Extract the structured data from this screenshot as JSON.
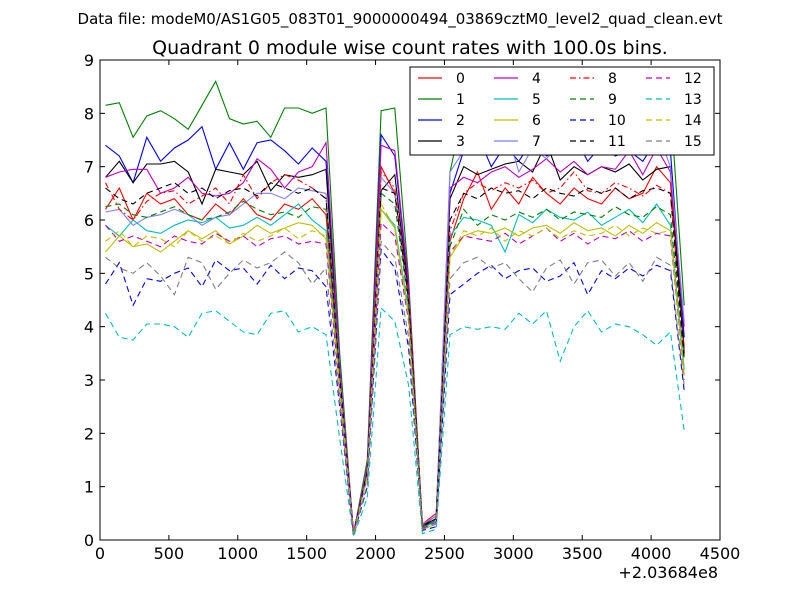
{
  "suptitle": "Data file: modeM0/AS1G05_083T01_9000000494_03869cztM0_level2_quad_clean.evt",
  "chart_data": {
    "type": "line",
    "title": "Quadrant 0 module wise count rates with 100.0s bins.",
    "xlabel": "",
    "ylabel": "",
    "xlim": [
      0,
      4500
    ],
    "ylim": [
      0,
      9
    ],
    "x_offset_label": "+2.03684e8",
    "xticks": [
      0,
      500,
      1000,
      1500,
      2000,
      2500,
      3000,
      3500,
      4000,
      4500
    ],
    "yticks": [
      0,
      1,
      2,
      3,
      4,
      5,
      6,
      7,
      8,
      9
    ],
    "grid": false,
    "legend_position": "top-right",
    "legend_columns": 4,
    "x": [
      40,
      140,
      240,
      340,
      440,
      540,
      640,
      740,
      840,
      940,
      1040,
      1140,
      1240,
      1340,
      1440,
      1540,
      1640,
      1740,
      1840,
      1940,
      2040,
      2140,
      2240,
      2340,
      2440,
      2540,
      2640,
      2740,
      2840,
      2940,
      3040,
      3140,
      3240,
      3340,
      3440,
      3540,
      3640,
      3740,
      3840,
      3940,
      4040,
      4140,
      4240
    ],
    "series": [
      {
        "name": "0",
        "color": "#ff0000",
        "dash": "solid",
        "values": [
          6.2,
          6.6,
          6.0,
          6.5,
          6.3,
          6.4,
          6.1,
          6.0,
          6.3,
          6.1,
          6.4,
          6.1,
          6.0,
          6.3,
          6.2,
          6.4,
          6.1,
          3.0,
          0.15,
          1.3,
          7.0,
          6.5,
          4.5,
          0.3,
          0.5,
          5.6,
          6.4,
          6.9,
          6.2,
          6.6,
          6.3,
          6.8,
          6.5,
          6.3,
          6.6,
          6.4,
          6.3,
          6.6,
          6.4,
          6.5,
          7.0,
          6.7,
          3.6
        ]
      },
      {
        "name": "1",
        "color": "#008000",
        "dash": "solid",
        "values": [
          8.15,
          8.2,
          7.55,
          7.95,
          8.05,
          7.9,
          7.7,
          8.15,
          8.6,
          7.9,
          7.8,
          7.85,
          7.55,
          8.1,
          8.1,
          8.0,
          8.1,
          3.5,
          0.1,
          1.5,
          8.05,
          8.1,
          4.9,
          0.25,
          0.35,
          6.9,
          8.1,
          8.4,
          8.0,
          8.2,
          8.3,
          8.1,
          8.05,
          8.3,
          8.25,
          8.1,
          8.2,
          8.0,
          8.25,
          8.1,
          8.15,
          8.2,
          4.4
        ]
      },
      {
        "name": "2",
        "color": "#0000ff",
        "dash": "solid",
        "values": [
          7.4,
          7.2,
          6.7,
          7.55,
          7.1,
          7.35,
          7.5,
          7.75,
          6.95,
          7.45,
          6.95,
          7.45,
          7.5,
          7.3,
          7.05,
          7.35,
          7.1,
          3.3,
          0.12,
          1.4,
          7.6,
          7.2,
          4.7,
          0.28,
          0.4,
          6.5,
          7.3,
          7.6,
          7.0,
          7.4,
          7.1,
          7.5,
          7.2,
          7.3,
          7.6,
          7.1,
          7.4,
          7.2,
          7.3,
          7.1,
          7.5,
          7.3,
          3.8
        ]
      },
      {
        "name": "3",
        "color": "#000000",
        "dash": "solid",
        "values": [
          6.8,
          7.1,
          6.7,
          7.05,
          7.05,
          7.1,
          6.9,
          6.3,
          6.95,
          6.9,
          6.85,
          7.1,
          6.55,
          6.85,
          6.8,
          6.85,
          6.95,
          3.2,
          0.12,
          1.35,
          6.55,
          6.85,
          4.6,
          0.25,
          0.4,
          6.4,
          7.0,
          6.85,
          6.95,
          7.05,
          7.1,
          6.9,
          7.45,
          6.75,
          7.0,
          6.85,
          7.0,
          6.9,
          7.05,
          6.75,
          6.95,
          7.0,
          3.5
        ]
      },
      {
        "name": "4",
        "color": "#bf00bf",
        "dash": "solid",
        "values": [
          6.8,
          6.9,
          6.95,
          6.95,
          6.5,
          6.6,
          6.8,
          6.5,
          6.45,
          6.5,
          6.7,
          7.15,
          6.95,
          6.6,
          6.9,
          7.0,
          7.45,
          3.3,
          0.12,
          1.4,
          7.4,
          7.3,
          4.8,
          0.28,
          0.45,
          6.6,
          6.8,
          6.7,
          6.9,
          7.0,
          6.8,
          6.95,
          7.15,
          6.9,
          7.1,
          6.85,
          7.0,
          6.95,
          7.3,
          6.85,
          7.35,
          6.9,
          4.0
        ]
      },
      {
        "name": "5",
        "color": "#00bfbf",
        "dash": "solid",
        "values": [
          5.9,
          5.7,
          6.0,
          5.8,
          5.75,
          5.9,
          6.0,
          5.95,
          6.05,
          5.85,
          5.9,
          6.05,
          5.9,
          6.1,
          6.3,
          6.0,
          5.8,
          2.9,
          0.12,
          1.25,
          6.2,
          5.9,
          4.3,
          0.22,
          0.35,
          5.7,
          6.05,
          6.0,
          5.9,
          5.4,
          6.1,
          5.95,
          6.2,
          6.05,
          6.0,
          6.15,
          5.9,
          6.05,
          6.2,
          5.95,
          6.3,
          5.9,
          3.2
        ]
      },
      {
        "name": "6",
        "color": "#bfbf00",
        "dash": "solid",
        "values": [
          5.4,
          5.7,
          5.5,
          5.55,
          5.4,
          5.6,
          5.8,
          5.65,
          5.8,
          5.55,
          5.7,
          5.9,
          5.75,
          5.85,
          5.95,
          5.9,
          5.65,
          2.8,
          0.1,
          1.2,
          6.2,
          5.85,
          4.2,
          0.2,
          0.3,
          5.3,
          5.7,
          5.8,
          5.75,
          5.85,
          5.7,
          5.85,
          5.9,
          5.75,
          5.95,
          5.8,
          5.85,
          5.7,
          5.9,
          5.75,
          5.95,
          5.8,
          3.1
        ]
      },
      {
        "name": "7",
        "color": "#7f7fff",
        "dash": "solid",
        "values": [
          6.15,
          6.2,
          5.9,
          6.05,
          6.1,
          6.2,
          6.1,
          5.9,
          6.05,
          6.1,
          6.3,
          6.5,
          6.5,
          6.4,
          6.6,
          6.55,
          6.5,
          3.2,
          0.12,
          1.35,
          6.8,
          6.5,
          4.5,
          0.3,
          0.45,
          6.9,
          7.3,
          7.6,
          7.5,
          7.8,
          6.9,
          7.35,
          7.15,
          7.4,
          7.25,
          7.6,
          7.3,
          7.45,
          7.3,
          7.25,
          7.7,
          7.0,
          4.1
        ]
      },
      {
        "name": "8",
        "color": "#ff0000",
        "dash": "dashdot",
        "values": [
          6.7,
          6.2,
          6.0,
          6.35,
          6.5,
          6.55,
          6.3,
          6.45,
          6.6,
          6.3,
          6.85,
          6.4,
          6.7,
          6.85,
          6.75,
          6.6,
          6.4,
          3.1,
          0.12,
          1.3,
          6.9,
          6.6,
          4.6,
          0.28,
          0.4,
          5.8,
          6.5,
          6.7,
          6.55,
          6.7,
          6.6,
          6.75,
          6.5,
          6.6,
          6.9,
          6.55,
          6.5,
          6.7,
          6.6,
          6.45,
          6.65,
          6.5,
          3.5
        ]
      },
      {
        "name": "9",
        "color": "#008000",
        "dash": "dashed",
        "values": [
          6.25,
          6.3,
          6.1,
          6.05,
          6.15,
          6.25,
          6.1,
          6.0,
          6.05,
          6.15,
          6.35,
          6.2,
          6.1,
          6.15,
          6.05,
          6.25,
          6.2,
          3.0,
          0.12,
          1.3,
          6.5,
          6.3,
          4.4,
          0.25,
          0.38,
          5.5,
          6.2,
          5.9,
          6.1,
          6.0,
          6.15,
          6.05,
          6.2,
          6.0,
          6.15,
          6.1,
          6.05,
          6.25,
          6.1,
          6.05,
          6.25,
          6.1,
          3.4
        ]
      },
      {
        "name": "10",
        "color": "#0000ff",
        "dash": "dashed",
        "values": [
          4.8,
          5.2,
          4.4,
          4.9,
          4.85,
          5.0,
          5.1,
          4.75,
          5.25,
          5.05,
          5.1,
          4.8,
          5.15,
          4.9,
          5.1,
          5.05,
          4.75,
          2.5,
          0.08,
          1.0,
          5.45,
          5.1,
          3.6,
          0.18,
          0.25,
          4.6,
          4.8,
          5.0,
          5.15,
          4.9,
          5.05,
          5.1,
          4.85,
          4.95,
          5.2,
          4.6,
          5.05,
          4.9,
          5.1,
          4.95,
          5.15,
          5.05,
          2.8
        ]
      },
      {
        "name": "11",
        "color": "#000000",
        "dash": "dashed",
        "values": [
          6.6,
          6.4,
          6.3,
          6.5,
          6.6,
          6.7,
          6.5,
          6.6,
          6.4,
          6.55,
          6.6,
          6.45,
          6.7,
          6.6,
          6.5,
          6.6,
          6.4,
          3.1,
          0.12,
          1.3,
          6.6,
          6.5,
          4.5,
          0.27,
          0.4,
          6.0,
          6.5,
          6.4,
          6.6,
          6.5,
          6.55,
          6.4,
          6.6,
          6.5,
          6.45,
          6.6,
          6.5,
          6.6,
          6.4,
          6.55,
          6.6,
          6.5,
          3.4
        ]
      },
      {
        "name": "12",
        "color": "#bf00bf",
        "dash": "dashed",
        "values": [
          5.9,
          5.6,
          5.7,
          5.6,
          5.5,
          5.7,
          5.6,
          5.55,
          5.75,
          5.6,
          5.7,
          5.5,
          5.65,
          5.7,
          5.55,
          5.6,
          5.55,
          2.8,
          0.1,
          1.2,
          5.95,
          5.7,
          4.1,
          0.22,
          0.33,
          5.4,
          5.7,
          5.65,
          5.6,
          5.75,
          5.55,
          5.7,
          5.85,
          5.6,
          5.75,
          5.55,
          5.7,
          5.65,
          5.8,
          5.6,
          5.75,
          5.7,
          3.0
        ]
      },
      {
        "name": "13",
        "color": "#00bfbf",
        "dash": "dashed",
        "values": [
          4.25,
          3.8,
          3.75,
          4.05,
          4.05,
          4.0,
          3.8,
          4.25,
          4.3,
          4.1,
          3.9,
          3.85,
          4.25,
          4.3,
          3.9,
          4.0,
          3.85,
          1.9,
          0.06,
          0.8,
          4.35,
          4.1,
          2.9,
          0.12,
          0.2,
          3.85,
          4.0,
          3.95,
          4.0,
          3.95,
          4.25,
          4.05,
          4.3,
          3.35,
          4.0,
          4.3,
          3.9,
          4.05,
          4.0,
          3.85,
          3.65,
          3.9,
          2.05
        ]
      },
      {
        "name": "14",
        "color": "#bfbf00",
        "dash": "dashed",
        "values": [
          5.6,
          5.8,
          5.5,
          5.7,
          5.65,
          5.5,
          5.8,
          5.6,
          5.7,
          5.55,
          5.75,
          5.6,
          5.7,
          5.85,
          5.65,
          5.8,
          5.7,
          2.9,
          0.1,
          1.2,
          6.3,
          5.85,
          4.2,
          0.2,
          0.3,
          5.3,
          5.8,
          5.7,
          5.85,
          5.6,
          5.8,
          5.7,
          5.85,
          5.65,
          5.8,
          5.7,
          5.75,
          5.9,
          5.7,
          5.85,
          5.75,
          5.8,
          3.0
        ]
      },
      {
        "name": "15",
        "color": "#7f7f7f",
        "dash": "dashed",
        "values": [
          5.3,
          5.1,
          5.0,
          5.2,
          4.95,
          4.6,
          5.3,
          5.2,
          4.7,
          5.0,
          5.25,
          5.1,
          5.2,
          5.4,
          5.2,
          4.8,
          5.1,
          2.6,
          0.08,
          1.05,
          5.6,
          5.3,
          3.8,
          0.2,
          0.3,
          4.9,
          5.2,
          5.3,
          5.1,
          5.2,
          4.9,
          4.65,
          5.1,
          5.25,
          4.8,
          5.2,
          5.25,
          4.95,
          5.2,
          4.85,
          5.3,
          5.15,
          2.9
        ]
      }
    ]
  }
}
